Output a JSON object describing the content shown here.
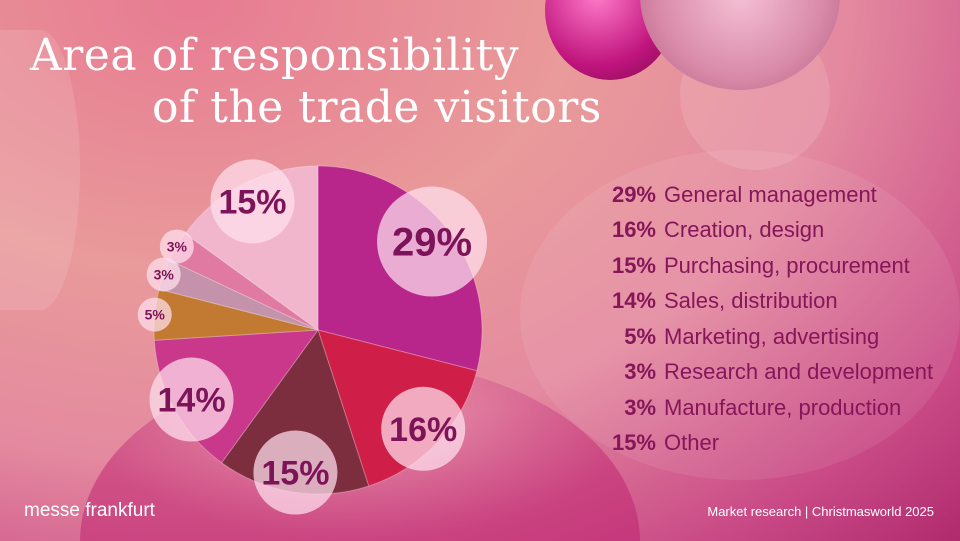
{
  "title": {
    "line1": "Area of responsibility",
    "line2": "of the trade visitors"
  },
  "chart_data": {
    "type": "pie",
    "title": "Area of responsibility of the trade visitors",
    "unit": "%",
    "slices": [
      {
        "label": "General management",
        "value": 29,
        "display": "29%",
        "color": "#b8268c"
      },
      {
        "label": "Creation, design",
        "value": 16,
        "display": "16%",
        "color": "#cf1f48"
      },
      {
        "label": "Purchasing, procurement",
        "value": 15,
        "display": "15%",
        "color": "#7d2e3e"
      },
      {
        "label": "Sales, distribution",
        "value": 14,
        "display": "14%",
        "color": "#c9388a"
      },
      {
        "label": "Marketing, advertising",
        "value": 5,
        "display": "5%",
        "color": "#c27a32"
      },
      {
        "label": "Research and development",
        "value": 3,
        "display": "3%",
        "color": "#c493ab"
      },
      {
        "label": "Manufacture, production",
        "value": 3,
        "display": "3%",
        "color": "#e07aa2"
      },
      {
        "label": "Other",
        "value": 15,
        "display": "15%",
        "color": "#f2b6cc"
      }
    ],
    "legend_placement": "right"
  },
  "footer": {
    "brand": "messe frankfurt",
    "source": "Market research | Christmasworld 2025"
  }
}
